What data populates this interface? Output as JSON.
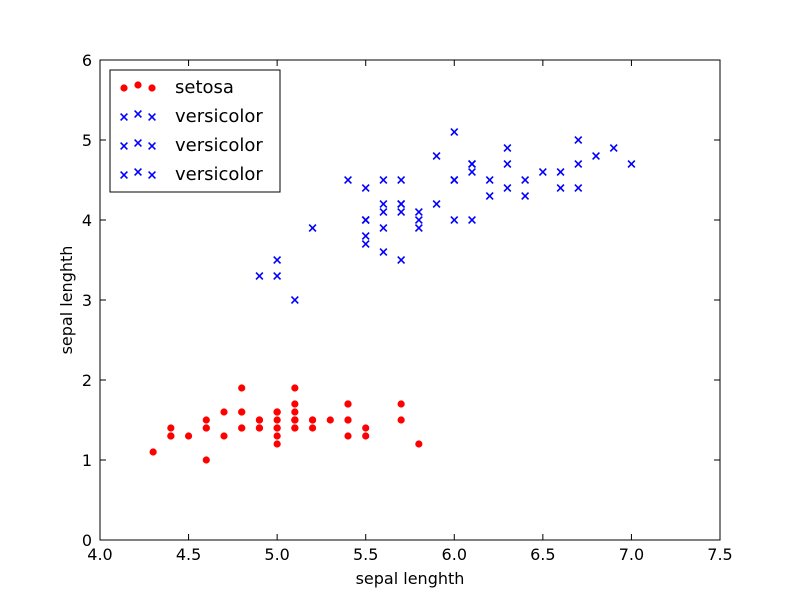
{
  "chart_data": {
    "type": "scatter",
    "title": "",
    "xlabel": "sepal lenghth",
    "ylabel": "sepal lenghth",
    "xlim": [
      4.0,
      7.5
    ],
    "ylim": [
      0,
      6
    ],
    "xticks": [
      "4.0",
      "4.5",
      "5.0",
      "5.5",
      "6.0",
      "6.5",
      "7.0",
      "7.5"
    ],
    "yticks": [
      "0",
      "1",
      "2",
      "3",
      "4",
      "5",
      "6"
    ],
    "grid": false,
    "legend_position": "top-left",
    "legend": [
      {
        "label": "setosa",
        "marker": "circle",
        "color": "#ff0000"
      },
      {
        "label": "versicolor",
        "marker": "x",
        "color": "#0000ff"
      },
      {
        "label": "versicolor",
        "marker": "x",
        "color": "#0000ff"
      },
      {
        "label": "versicolor",
        "marker": "x",
        "color": "#0000ff"
      }
    ],
    "series": [
      {
        "name": "setosa",
        "marker": "circle",
        "color": "#ff0000",
        "points": [
          [
            5.1,
            1.4
          ],
          [
            4.9,
            1.4
          ],
          [
            4.7,
            1.3
          ],
          [
            4.6,
            1.5
          ],
          [
            5.0,
            1.4
          ],
          [
            5.4,
            1.7
          ],
          [
            4.6,
            1.4
          ],
          [
            5.0,
            1.5
          ],
          [
            4.4,
            1.4
          ],
          [
            4.9,
            1.5
          ],
          [
            5.4,
            1.5
          ],
          [
            4.8,
            1.6
          ],
          [
            4.8,
            1.4
          ],
          [
            4.3,
            1.1
          ],
          [
            5.8,
            1.2
          ],
          [
            5.7,
            1.5
          ],
          [
            5.4,
            1.3
          ],
          [
            5.1,
            1.4
          ],
          [
            5.7,
            1.7
          ],
          [
            5.1,
            1.5
          ],
          [
            5.4,
            1.7
          ],
          [
            5.1,
            1.5
          ],
          [
            4.6,
            1.0
          ],
          [
            5.1,
            1.7
          ],
          [
            4.8,
            1.9
          ],
          [
            5.0,
            1.6
          ],
          [
            5.0,
            1.6
          ],
          [
            5.2,
            1.5
          ],
          [
            5.2,
            1.4
          ],
          [
            4.7,
            1.6
          ],
          [
            4.8,
            1.6
          ],
          [
            5.4,
            1.5
          ],
          [
            5.2,
            1.5
          ],
          [
            5.5,
            1.4
          ],
          [
            4.9,
            1.5
          ],
          [
            5.0,
            1.2
          ],
          [
            5.5,
            1.3
          ],
          [
            4.9,
            1.4
          ],
          [
            4.4,
            1.3
          ],
          [
            5.1,
            1.5
          ],
          [
            5.0,
            1.3
          ],
          [
            4.5,
            1.3
          ],
          [
            4.4,
            1.3
          ],
          [
            5.0,
            1.6
          ],
          [
            5.1,
            1.9
          ],
          [
            4.8,
            1.4
          ],
          [
            5.1,
            1.6
          ],
          [
            4.6,
            1.4
          ],
          [
            5.3,
            1.5
          ],
          [
            5.0,
            1.4
          ]
        ]
      },
      {
        "name": "versicolor",
        "marker": "x",
        "color": "#0000ff",
        "points": [
          [
            7.0,
            4.7
          ],
          [
            6.4,
            4.5
          ],
          [
            6.9,
            4.9
          ],
          [
            5.5,
            4.0
          ],
          [
            6.5,
            4.6
          ],
          [
            5.7,
            4.5
          ],
          [
            6.3,
            4.7
          ],
          [
            4.9,
            3.3
          ],
          [
            6.6,
            4.6
          ],
          [
            5.2,
            3.9
          ],
          [
            5.0,
            3.5
          ],
          [
            5.9,
            4.2
          ],
          [
            6.0,
            4.0
          ],
          [
            6.1,
            4.7
          ],
          [
            5.6,
            3.6
          ],
          [
            6.7,
            4.4
          ],
          [
            5.6,
            4.5
          ],
          [
            5.8,
            4.1
          ],
          [
            6.2,
            4.5
          ],
          [
            5.6,
            3.9
          ],
          [
            5.9,
            4.8
          ],
          [
            6.1,
            4.0
          ],
          [
            6.3,
            4.9
          ],
          [
            6.1,
            4.7
          ],
          [
            6.4,
            4.3
          ],
          [
            6.6,
            4.4
          ],
          [
            6.8,
            4.8
          ],
          [
            6.7,
            5.0
          ],
          [
            6.0,
            4.5
          ],
          [
            5.7,
            3.5
          ],
          [
            5.5,
            3.8
          ],
          [
            5.5,
            3.7
          ],
          [
            5.8,
            3.9
          ],
          [
            6.0,
            5.1
          ],
          [
            5.4,
            4.5
          ],
          [
            6.0,
            4.5
          ],
          [
            6.7,
            4.7
          ],
          [
            6.3,
            4.4
          ],
          [
            5.6,
            4.1
          ],
          [
            5.5,
            4.0
          ],
          [
            5.5,
            4.4
          ],
          [
            6.1,
            4.6
          ],
          [
            5.8,
            4.0
          ],
          [
            5.0,
            3.3
          ],
          [
            5.6,
            4.2
          ],
          [
            5.7,
            4.2
          ],
          [
            5.7,
            4.2
          ],
          [
            6.2,
            4.3
          ],
          [
            5.1,
            3.0
          ],
          [
            5.7,
            4.1
          ]
        ]
      }
    ]
  }
}
